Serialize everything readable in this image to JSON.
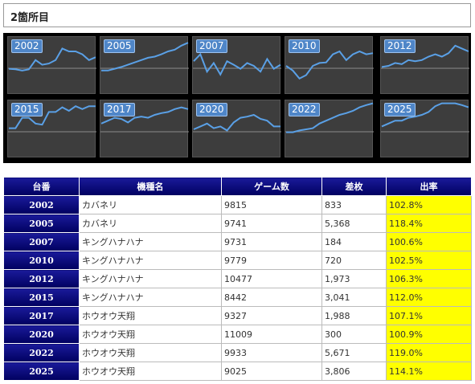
{
  "header": {
    "title": "2箇所目"
  },
  "graphs": [
    {
      "label": "2002",
      "points": [
        0.55,
        0.56,
        0.58,
        0.56,
        0.4,
        0.48,
        0.46,
        0.4,
        0.2,
        0.25,
        0.25,
        0.3,
        0.4,
        0.35
      ]
    },
    {
      "label": "2005",
      "points": [
        0.58,
        0.58,
        0.55,
        0.52,
        0.48,
        0.44,
        0.4,
        0.36,
        0.34,
        0.3,
        0.25,
        0.22,
        0.15,
        0.1
      ]
    },
    {
      "label": "2007",
      "points": [
        0.42,
        0.3,
        0.6,
        0.45,
        0.65,
        0.42,
        0.48,
        0.55,
        0.45,
        0.5,
        0.6,
        0.38,
        0.55,
        0.48
      ]
    },
    {
      "label": "2010",
      "points": [
        0.5,
        0.58,
        0.72,
        0.66,
        0.5,
        0.45,
        0.44,
        0.3,
        0.25,
        0.4,
        0.3,
        0.25,
        0.3,
        0.28
      ]
    },
    {
      "label": "2012",
      "points": [
        0.52,
        0.5,
        0.45,
        0.47,
        0.4,
        0.42,
        0.4,
        0.34,
        0.3,
        0.34,
        0.28,
        0.15,
        0.2,
        0.25
      ]
    },
    {
      "label": "2015",
      "points": [
        0.48,
        0.48,
        0.3,
        0.3,
        0.4,
        0.42,
        0.2,
        0.2,
        0.12,
        0.18,
        0.1,
        0.15,
        0.1,
        0.1
      ]
    },
    {
      "label": "2017",
      "points": [
        0.4,
        0.35,
        0.3,
        0.32,
        0.38,
        0.3,
        0.28,
        0.3,
        0.25,
        0.22,
        0.2,
        0.15,
        0.12,
        0.15
      ]
    },
    {
      "label": "2020",
      "points": [
        0.5,
        0.45,
        0.4,
        0.48,
        0.45,
        0.52,
        0.38,
        0.3,
        0.28,
        0.25,
        0.32,
        0.35,
        0.45,
        0.45
      ]
    },
    {
      "label": "2022",
      "points": [
        0.55,
        0.55,
        0.52,
        0.5,
        0.48,
        0.4,
        0.35,
        0.3,
        0.25,
        0.22,
        0.18,
        0.12,
        0.08,
        0.05
      ]
    },
    {
      "label": "2025",
      "points": [
        0.45,
        0.4,
        0.35,
        0.35,
        0.3,
        0.28,
        0.25,
        0.2,
        0.1,
        0.05,
        0.05,
        0.05,
        0.08,
        0.12
      ]
    }
  ],
  "table": {
    "headers": [
      "台番",
      "機種名",
      "ゲーム数",
      "差枚",
      "出率"
    ],
    "rows": [
      {
        "num": "2002",
        "name": "カバネリ",
        "games": "9815",
        "diff": "833",
        "rate": "102.8%"
      },
      {
        "num": "2005",
        "name": "カバネリ",
        "games": "9741",
        "diff": "5,368",
        "rate": "118.4%"
      },
      {
        "num": "2007",
        "name": "キングハナハナ",
        "games": "9731",
        "diff": "184",
        "rate": "100.6%"
      },
      {
        "num": "2010",
        "name": "キングハナハナ",
        "games": "9779",
        "diff": "720",
        "rate": "102.5%"
      },
      {
        "num": "2012",
        "name": "キングハナハナ",
        "games": "10477",
        "diff": "1,973",
        "rate": "106.3%"
      },
      {
        "num": "2015",
        "name": "キングハナハナ",
        "games": "8442",
        "diff": "3,041",
        "rate": "112.0%"
      },
      {
        "num": "2017",
        "name": "ホウオウ天翔",
        "games": "9327",
        "diff": "1,988",
        "rate": "107.1%"
      },
      {
        "num": "2020",
        "name": "ホウオウ天翔",
        "games": "11009",
        "diff": "300",
        "rate": "100.9%"
      },
      {
        "num": "2022",
        "name": "ホウオウ天翔",
        "games": "9933",
        "diff": "5,671",
        "rate": "119.0%"
      },
      {
        "num": "2025",
        "name": "ホウオウ天翔",
        "games": "9025",
        "diff": "3,806",
        "rate": "114.1%"
      }
    ]
  },
  "colors": {
    "header_bg": "#000060",
    "rate_bg": "#ffff00",
    "graph_line": "#5aa0e6",
    "label_bg": "#4f86c8"
  }
}
